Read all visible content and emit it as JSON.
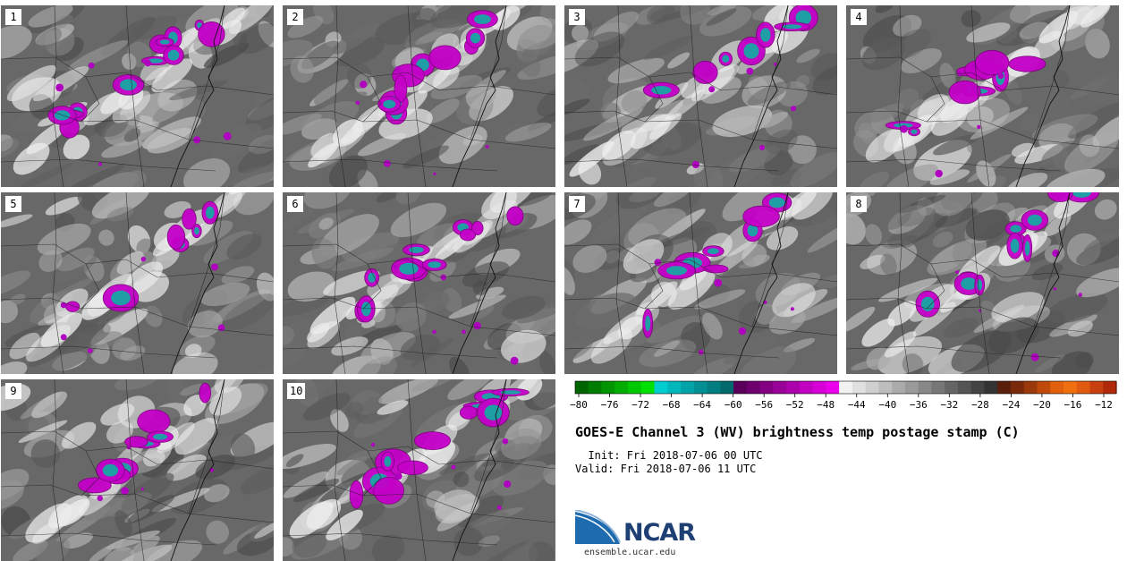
{
  "panels": [
    {
      "label": "1"
    },
    {
      "label": "2"
    },
    {
      "label": "3"
    },
    {
      "label": "4"
    },
    {
      "label": "5"
    },
    {
      "label": "6"
    },
    {
      "label": "7"
    },
    {
      "label": "8"
    },
    {
      "label": "9"
    },
    {
      "label": "10"
    }
  ],
  "colorbar": {
    "ticks": [
      "−80",
      "−76",
      "−72",
      "−68",
      "−64",
      "−60",
      "−56",
      "−52",
      "−48",
      "−44",
      "−40",
      "−36",
      "−32",
      "−28",
      "−24",
      "−20",
      "−16",
      "−12"
    ],
    "colors": [
      "#006400",
      "#007d00",
      "#009400",
      "#00ad00",
      "#00c800",
      "#00e000",
      "#00cdd0",
      "#00b8bc",
      "#00a4a8",
      "#009094",
      "#007d80",
      "#006a6c",
      "#5a005a",
      "#6e006e",
      "#830083",
      "#980098",
      "#ac00ac",
      "#c100c1",
      "#d600d6",
      "#eb00eb",
      "#f2f2f2",
      "#e0e0e0",
      "#cfcfcf",
      "#bdbdbd",
      "#ababab",
      "#9a9a9a",
      "#888888",
      "#777777",
      "#656565",
      "#545454",
      "#434343",
      "#333333",
      "#5a1f0a",
      "#7a2a0a",
      "#9a3a0c",
      "#c04a0c",
      "#e0600c",
      "#f07010",
      "#e05a10",
      "#c84010",
      "#b02a0a"
    ]
  },
  "title": "GOES-E Channel 3 (WV) brightness temp postage stamp (C)",
  "init": "  Init: Fri 2018-07-06 00 UTC",
  "valid": "Valid: Fri 2018-07-06 11 UTC",
  "logo": {
    "name": "NCAR",
    "url": "ensemble.ucar.edu"
  }
}
